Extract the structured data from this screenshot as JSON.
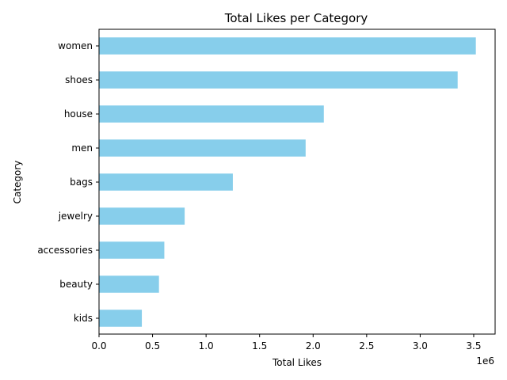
{
  "chart_data": {
    "type": "bar",
    "orientation": "horizontal",
    "title": "Total Likes per Category",
    "xlabel": "Total Likes",
    "ylabel": "Category",
    "x_scale_label": "1e6",
    "categories": [
      "women",
      "shoes",
      "house",
      "men",
      "bags",
      "jewelry",
      "accessories",
      "beauty",
      "kids"
    ],
    "values": [
      3520000,
      3350000,
      2100000,
      1930000,
      1250000,
      800000,
      610000,
      560000,
      400000
    ],
    "xlim": [
      0,
      3.7
    ],
    "x_ticks": [
      0.0,
      0.5,
      1.0,
      1.5,
      2.0,
      2.5,
      3.0,
      3.5
    ],
    "x_tick_labels": [
      "0.0",
      "0.5",
      "1.0",
      "1.5",
      "2.0",
      "2.5",
      "3.0",
      "3.5"
    ],
    "bar_color": "#87ceeb",
    "grid": false,
    "legend": false
  }
}
